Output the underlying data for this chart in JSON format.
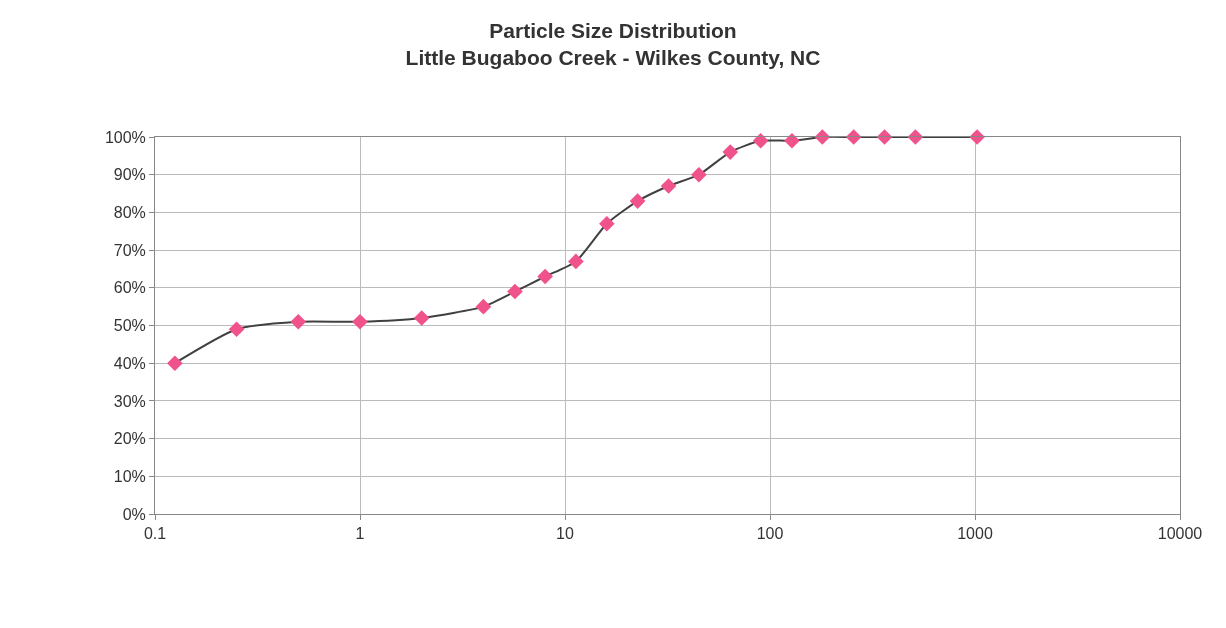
{
  "chart_data": {
    "type": "line",
    "title": "Particle Size Distribution",
    "subtitle": "Little Bugaboo Creek - Wilkes County, NC",
    "x": [
      0.125,
      0.25,
      0.5,
      1,
      2,
      4,
      5.7,
      8,
      11.3,
      16,
      22.6,
      32,
      45,
      64,
      90,
      128,
      180,
      256,
      362,
      512,
      1024
    ],
    "series": [
      {
        "color": "#f0528c",
        "values": [
          40,
          49,
          51,
          51,
          52,
          55,
          59,
          63,
          67,
          77,
          83,
          87,
          90,
          96,
          99,
          99,
          100,
          100,
          100,
          100,
          100
        ]
      }
    ],
    "log": "x",
    "xlim": [
      0.1,
      10000
    ],
    "xticks": [
      0.1,
      1,
      10,
      100,
      1000,
      10000
    ],
    "ylim": [
      0,
      100
    ],
    "yticks": [
      {
        "value": 0,
        "label": "0%"
      },
      {
        "value": 10,
        "label": "10%"
      },
      {
        "value": 20,
        "label": "20%"
      },
      {
        "value": 30,
        "label": "30%"
      },
      {
        "value": 40,
        "label": "40%"
      },
      {
        "value": 50,
        "label": "50%"
      },
      {
        "value": 60,
        "label": "60%"
      },
      {
        "value": 70,
        "label": "70%"
      },
      {
        "value": 80,
        "label": "80%"
      },
      {
        "value": 90,
        "label": "90%"
      },
      {
        "value": 100,
        "label": "100%"
      }
    ],
    "grid": true,
    "marker": "diamond",
    "line_style": "solid"
  }
}
